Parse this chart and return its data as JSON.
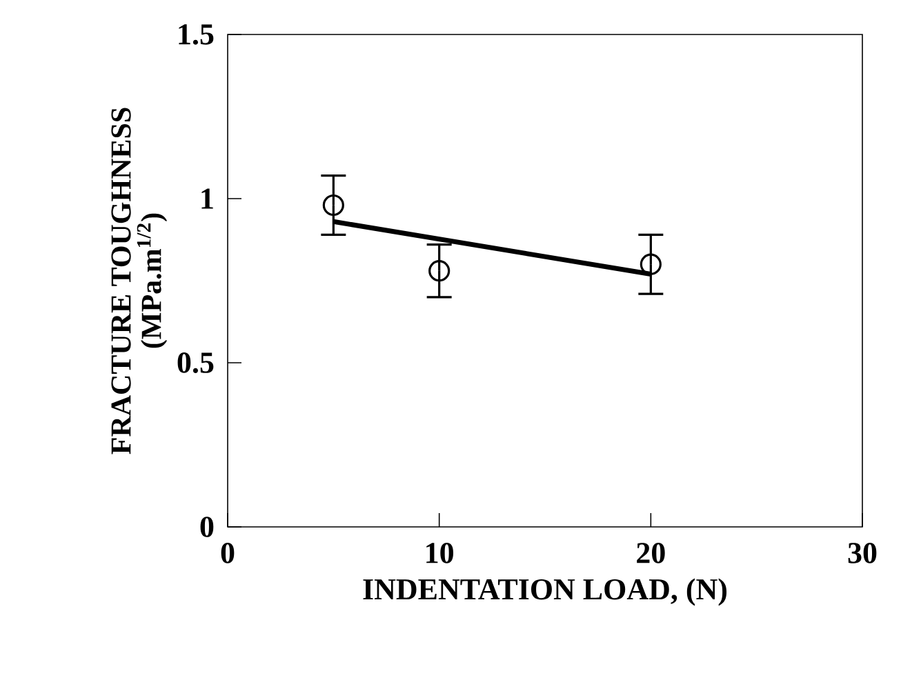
{
  "chart_data": {
    "type": "scatter",
    "xlabel": "INDENTATION LOAD, (N)",
    "ylabel": "FRACTURE TOUGHNESS (MPa.m$^{1/2}$)",
    "xlim": [
      0,
      30
    ],
    "xticks": [
      0,
      10,
      20,
      30
    ],
    "ylim": [
      0,
      1.5
    ],
    "yticks": [
      0,
      0.5,
      1,
      1.5
    ],
    "grid": false,
    "series": [
      {
        "color": "#000000",
        "marker": "circle",
        "x": [
          5,
          10,
          20
        ],
        "values": [
          0.98,
          0.78,
          0.8
        ],
        "errors": [
          0.09,
          [
            0.7,
            0.86
          ],
          0.09
        ]
      },
      {
        "type": "line",
        "color": "#000000",
        "marker": "none",
        "line_style": "solid",
        "x": [
          5,
          20
        ],
        "values": [
          0.93,
          0.77
        ]
      }
    ]
  }
}
